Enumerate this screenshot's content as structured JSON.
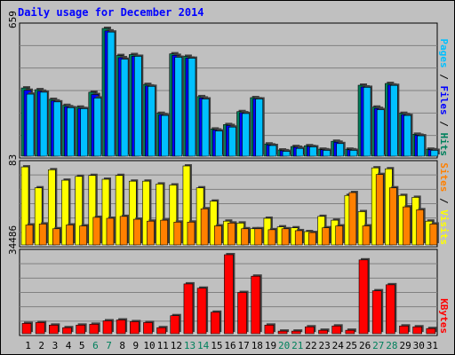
{
  "chart_data": {
    "type": "bar",
    "title": "Daily usage for December 2014",
    "categories": [
      "1",
      "2",
      "3",
      "4",
      "5",
      "6",
      "7",
      "8",
      "9",
      "10",
      "11",
      "12",
      "13",
      "14",
      "15",
      "16",
      "17",
      "18",
      "19",
      "20",
      "21",
      "22",
      "23",
      "24",
      "25",
      "26",
      "27",
      "28",
      "29",
      "30",
      "31"
    ],
    "category_colors": [
      "#000000",
      "#000000",
      "#000000",
      "#000000",
      "#000000",
      "#00805c",
      "#00805c",
      "#000000",
      "#000000",
      "#000000",
      "#000000",
      "#000000",
      "#00805c",
      "#00805c",
      "#000000",
      "#000000",
      "#000000",
      "#000000",
      "#000000",
      "#00805c",
      "#00805c",
      "#000000",
      "#000000",
      "#000000",
      "#000000",
      "#000000",
      "#00805c",
      "#00805c",
      "#000000",
      "#000000",
      "#000000"
    ],
    "legend_separator": " / ",
    "panels": [
      {
        "ylim": [
          0,
          659
        ],
        "yticks": [
          659
        ],
        "series": [
          {
            "name": "Hits",
            "color": "#00805c",
            "values": [
              352,
              343,
              293,
              262,
              253,
              330,
              659,
              519,
              524,
              370,
              221,
              528,
              515,
              307,
              140,
              163,
              230,
              302,
              63,
              32,
              50,
              54,
              36,
              77,
              36,
              366,
              253,
              375,
              221,
              113,
              36
            ]
          },
          {
            "name": "Files",
            "color": "#0000ff",
            "values": [
              340,
              335,
              285,
              255,
              246,
              318,
              646,
              508,
              515,
              362,
              214,
              520,
              506,
              300,
              135,
              158,
              224,
              296,
              58,
              28,
              46,
              50,
              33,
              72,
              33,
              357,
              246,
              367,
              214,
              108,
              33
            ]
          },
          {
            "name": "Pages",
            "color": "#00c0ff",
            "values": [
              320,
              330,
              280,
              250,
              245,
              300,
              640,
              500,
              515,
              360,
              210,
              510,
              505,
              295,
              130,
              150,
              220,
              295,
              55,
              25,
              40,
              48,
              30,
              65,
              30,
              355,
              240,
              365,
              210,
              105,
              30
            ]
          }
        ]
      },
      {
        "ylim": [
          0,
          83
        ],
        "yticks": [
          83
        ],
        "series": [
          {
            "name": "Visits",
            "color": "#ffff00",
            "values": [
              82,
              60,
              79,
              68,
              72,
              73,
              69,
              73,
              67,
              67,
              64,
              63,
              83,
              60,
              46,
              25,
              23,
              17,
              28,
              19,
              18,
              14,
              30,
              26,
              52,
              35,
              81,
              80,
              52,
              50,
              25
            ]
          },
          {
            "name": "Sites",
            "color": "#ff8000",
            "values": [
              21,
              22,
              17,
              21,
              20,
              29,
              28,
              30,
              27,
              25,
              26,
              24,
              24,
              38,
              20,
              23,
              17,
              17,
              16,
              17,
              15,
              13,
              18,
              20,
              55,
              20,
              74,
              60,
              40,
              37,
              22
            ]
          }
        ]
      },
      {
        "ylim": [
          0,
          34486
        ],
        "yticks": [
          34486
        ],
        "series": [
          {
            "name": "KBytes",
            "color": "#ff0000",
            "values": [
              4498,
              4872,
              3748,
              2624,
              3748,
              4123,
              5622,
              5997,
              5247,
              4872,
              2624,
              7871,
              21738,
              19864,
              9370,
              34486,
              17990,
              25112,
              3748,
              1124,
              1124,
              2998,
              1499,
              3373,
              1499,
              32233,
              18740,
              21364,
              3373,
              2998,
              2249
            ]
          }
        ]
      }
    ]
  }
}
